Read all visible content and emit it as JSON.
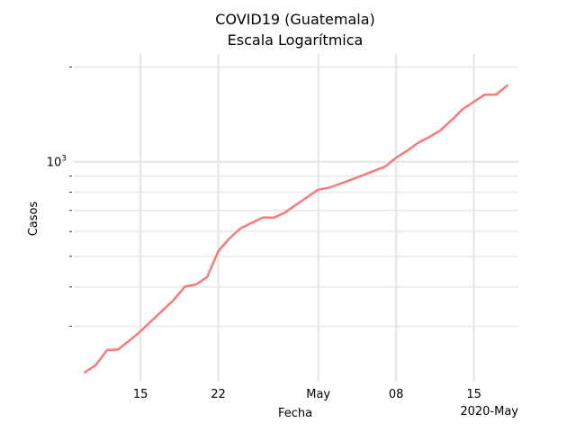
{
  "chart_data": {
    "type": "line",
    "title_line1": "COVID19 (Guatemala)",
    "title_line2": "Escala Logarítmica",
    "xlabel": "Fecha",
    "ylabel": "Casos",
    "y_scale": "log",
    "ylim": [
      200,
      2200
    ],
    "y_major_tick": {
      "value": 1000,
      "base": "10",
      "exponent": "3"
    },
    "y_minor_ticks": [
      300,
      400,
      500,
      600,
      700,
      800,
      900,
      2000
    ],
    "xlim": [
      "2020-04-09",
      "2020-05-19"
    ],
    "x_ticks": [
      {
        "date": "2020-04-15",
        "label": "15"
      },
      {
        "date": "2020-04-22",
        "label": "22"
      },
      {
        "date": "2020-05-01",
        "label": "May"
      },
      {
        "date": "2020-05-08",
        "label": "08"
      },
      {
        "date": "2020-05-15",
        "label": "15"
      }
    ],
    "x_corner_label": "2020-May",
    "legend": "none",
    "grid": true,
    "series": [
      {
        "color": "#f8797a",
        "x": [
          "2020-04-10",
          "2020-04-11",
          "2020-04-12",
          "2020-04-13",
          "2020-04-14",
          "2020-04-15",
          "2020-04-16",
          "2020-04-17",
          "2020-04-18",
          "2020-04-19",
          "2020-04-20",
          "2020-04-21",
          "2020-04-22",
          "2020-04-23",
          "2020-04-24",
          "2020-04-25",
          "2020-04-26",
          "2020-04-27",
          "2020-04-28",
          "2020-04-29",
          "2020-04-30",
          "2020-05-01",
          "2020-05-02",
          "2020-05-03",
          "2020-05-04",
          "2020-05-05",
          "2020-05-06",
          "2020-05-07",
          "2020-05-08",
          "2020-05-09",
          "2020-05-10",
          "2020-05-11",
          "2020-05-12",
          "2020-05-13",
          "2020-05-14",
          "2020-05-15",
          "2020-05-16",
          "2020-05-17",
          "2020-05-18"
        ],
        "y": [
          214,
          226,
          252,
          253,
          270,
          289,
          312,
          337,
          364,
          401,
          407,
          430,
          520,
          570,
          614,
          639,
          664,
          664,
          689,
          730,
          772,
          815,
          827,
          852,
          878,
          906,
          935,
          964,
          1030,
          1084,
          1150,
          1199,
          1258,
          1357,
          1470,
          1552,
          1634,
          1634,
          1747
        ]
      }
    ]
  }
}
